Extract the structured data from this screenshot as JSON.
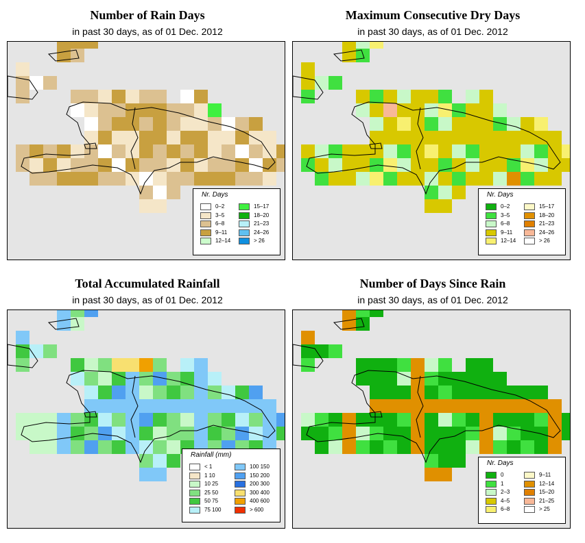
{
  "panels": [
    {
      "id": "rain-days",
      "title": "Number of Rain Days",
      "subtitle": "in past 30 days, as of  01 Dec. 2012",
      "legend": {
        "title": "Nr. Days",
        "items": [
          {
            "label": "0–2",
            "color": "#ffffff"
          },
          {
            "label": "3–5",
            "color": "#f5e6c8"
          },
          {
            "label": "6–8",
            "color": "#dcc191"
          },
          {
            "label": "9–11",
            "color": "#c8a040"
          },
          {
            "label": "12–14",
            "color": "#ccfccc"
          },
          {
            "label": "15–17",
            "color": "#40f040"
          },
          {
            "label": "18–20",
            "color": "#10b010"
          },
          {
            "label": "21–23",
            "color": "#b8f0f8"
          },
          {
            "label": "24–26",
            "color": "#60c0f0"
          },
          {
            "label": "> 26",
            "color": "#1090e0"
          }
        ]
      }
    },
    {
      "id": "max-dry-days",
      "title": "Maximum Consecutive Dry Days",
      "subtitle": "in past 30 days, as of  01 Dec. 2012",
      "legend": {
        "title": "Nr. Days",
        "items": [
          {
            "label": "0–2",
            "color": "#10b010"
          },
          {
            "label": "3–5",
            "color": "#40e040"
          },
          {
            "label": "6–8",
            "color": "#c8f8c8"
          },
          {
            "label": "9–11",
            "color": "#d8c800"
          },
          {
            "label": "12–14",
            "color": "#f8f070"
          },
          {
            "label": "15–17",
            "color": "#fcf8c8"
          },
          {
            "label": "18–20",
            "color": "#e09000"
          },
          {
            "label": "21–23",
            "color": "#e08000"
          },
          {
            "label": "24–26",
            "color": "#f8b898"
          },
          {
            "label": "> 26",
            "color": "#ffffff"
          }
        ]
      }
    },
    {
      "id": "total-rainfall",
      "title": "Total Accumulated Rainfall",
      "subtitle": "in past 30 days, as of  01 Dec. 2012",
      "legend": {
        "title": "Rainfall (mm)",
        "items": [
          {
            "label": "< 1",
            "color": "#ffffff"
          },
          {
            "label": "1    10",
            "color": "#f5e6c8"
          },
          {
            "label": "10    25",
            "color": "#c8f8c8"
          },
          {
            "label": "25    50",
            "color": "#80e080"
          },
          {
            "label": "50    75",
            "color": "#40c840"
          },
          {
            "label": "75  100",
            "color": "#b8f0f8"
          },
          {
            "label": "100  150",
            "color": "#80c8f8"
          },
          {
            "label": "150  200",
            "color": "#50a0f0"
          },
          {
            "label": "200  300",
            "color": "#2870e0"
          },
          {
            "label": "300  400",
            "color": "#f8e070"
          },
          {
            "label": "400  600",
            "color": "#f0a000"
          },
          {
            "label": "> 600",
            "color": "#f03000"
          }
        ]
      }
    },
    {
      "id": "days-since-rain",
      "title": "Number of Days Since Rain",
      "subtitle": "in past 30 days, as of  01 Dec. 2012",
      "legend": {
        "title": "Nr. Days",
        "items": [
          {
            "label": "0",
            "color": "#10b010"
          },
          {
            "label": "1",
            "color": "#40e040"
          },
          {
            "label": "2–3",
            "color": "#c8f8c8"
          },
          {
            "label": "4–5",
            "color": "#d8c800"
          },
          {
            "label": "6–8",
            "color": "#f8f070"
          },
          {
            "label": "9–11",
            "color": "#fcf8c8"
          },
          {
            "label": "12–14",
            "color": "#e09000"
          },
          {
            "label": "15–20",
            "color": "#e08000"
          },
          {
            "label": "21–25",
            "color": "#f8b898"
          },
          {
            "label": "> 25",
            "color": "#ffffff"
          }
        ]
      }
    }
  ]
}
